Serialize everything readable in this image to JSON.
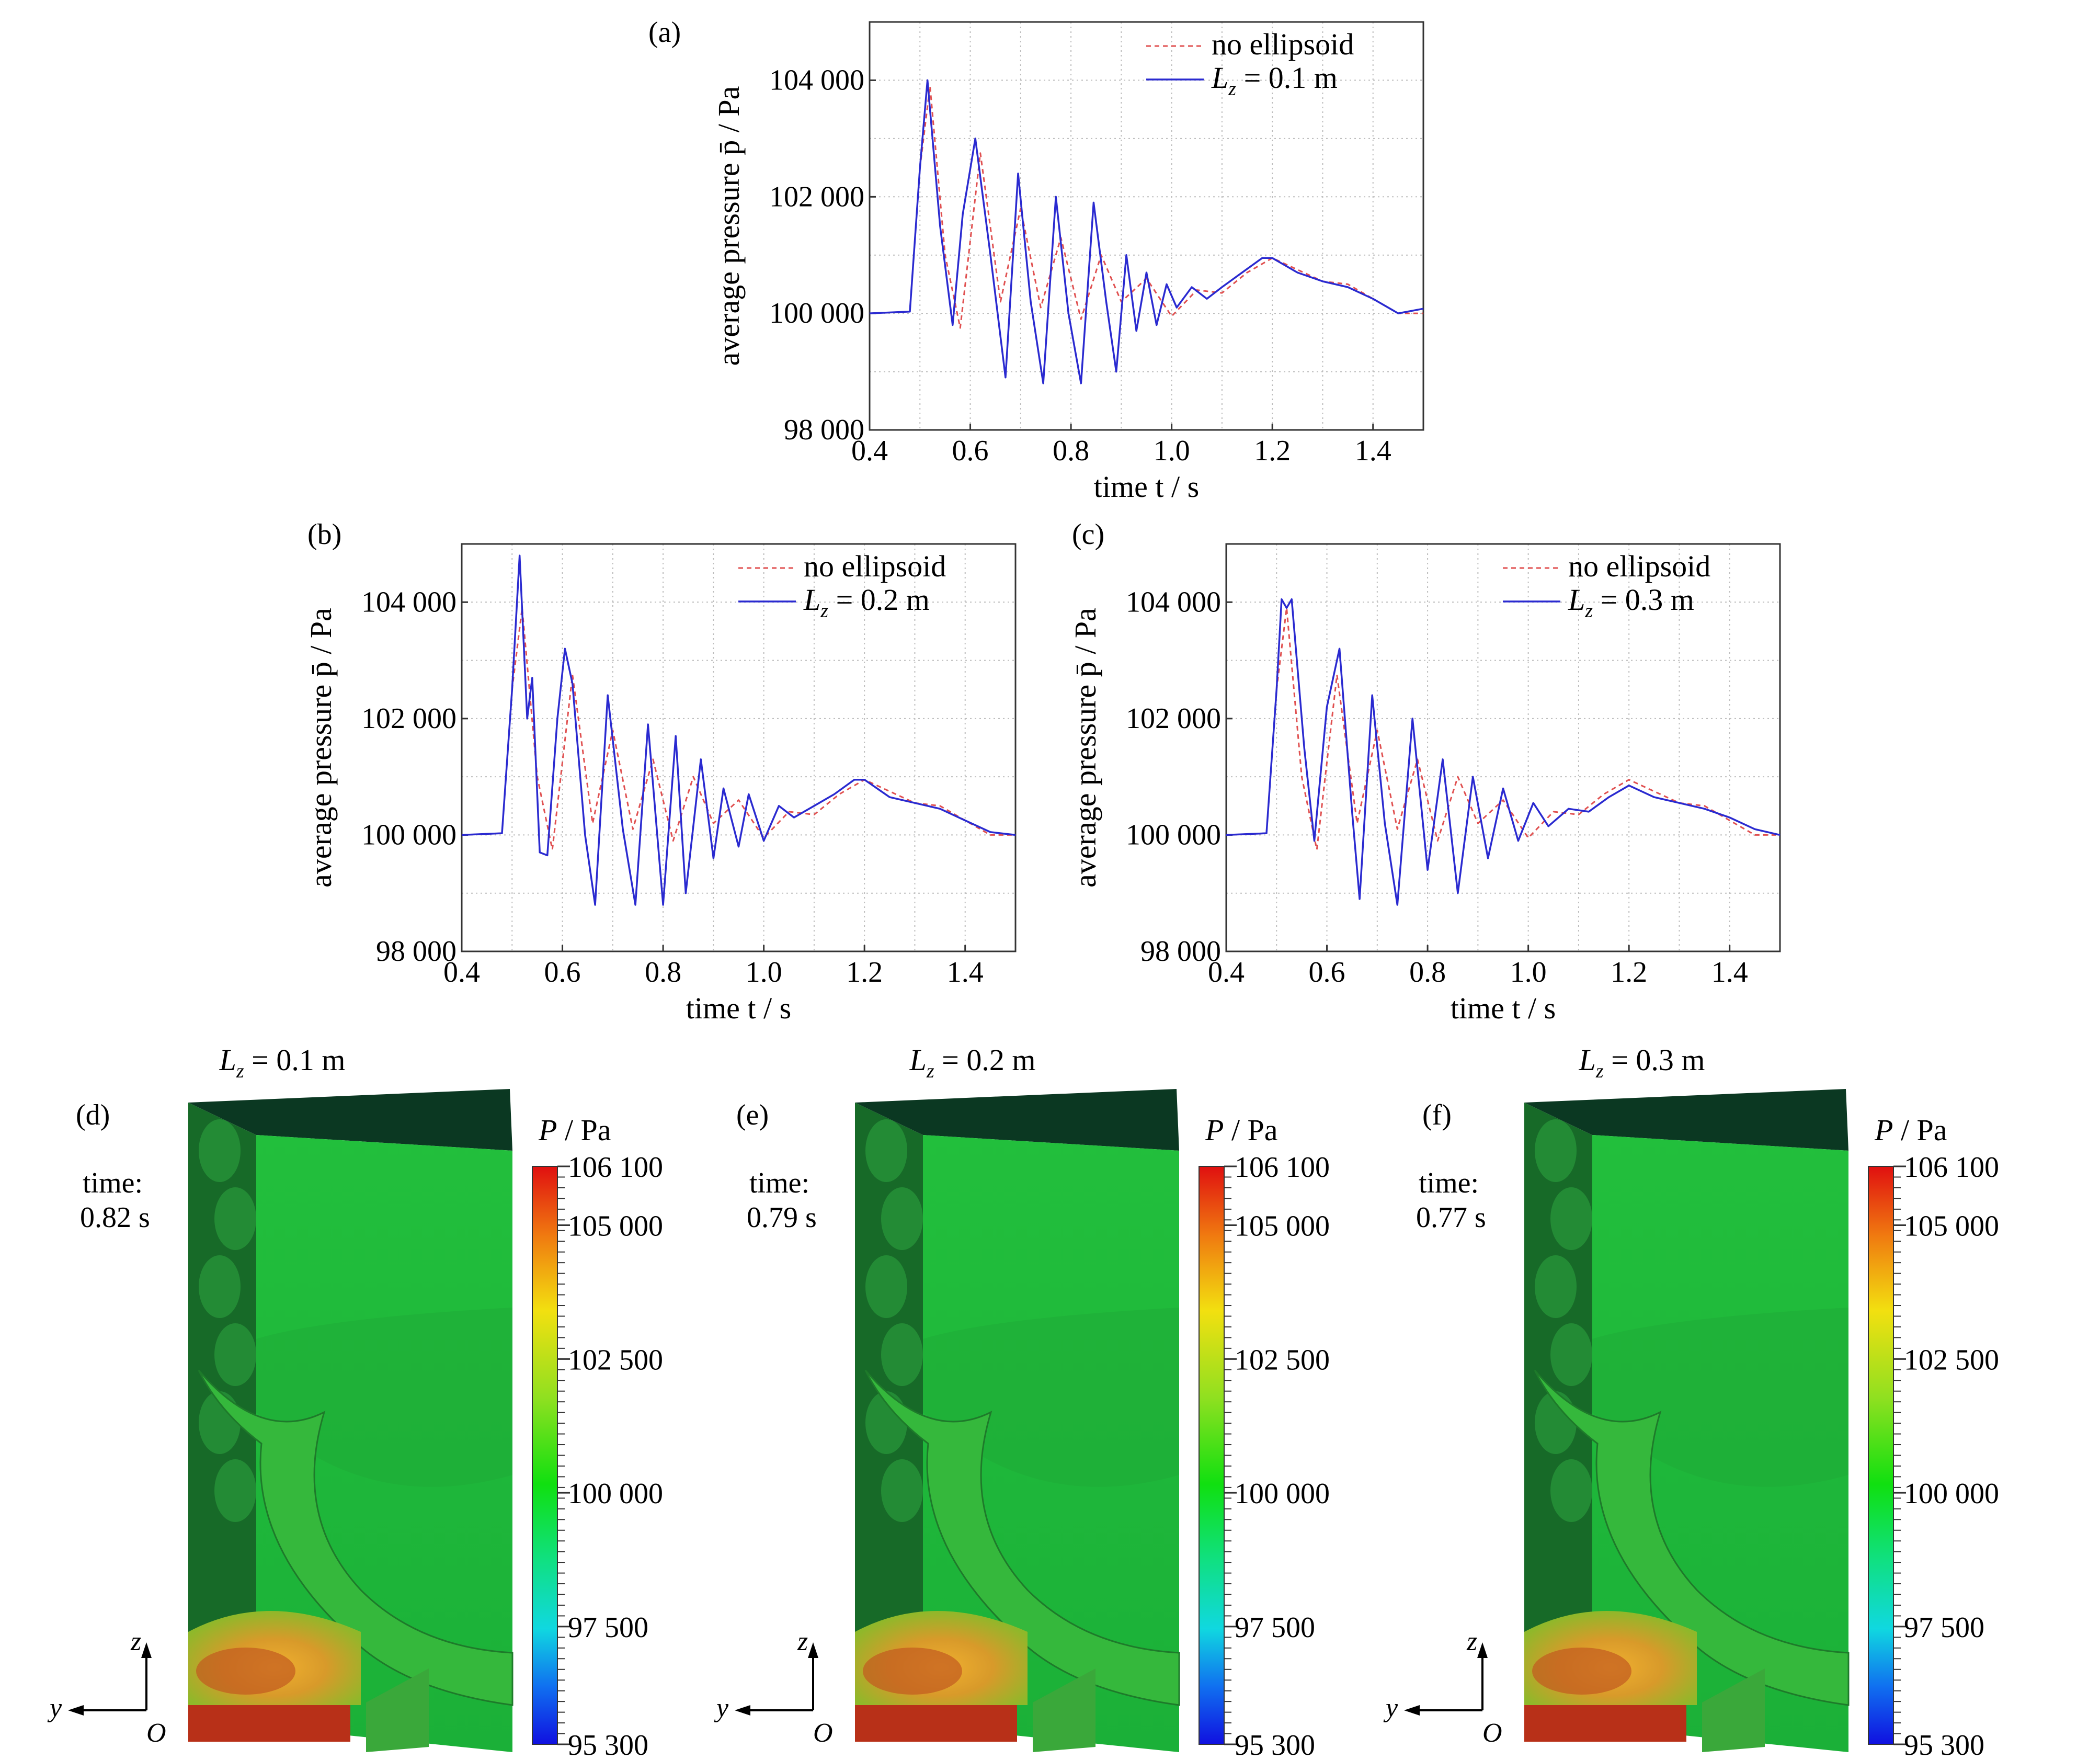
{
  "chart_data": [
    {
      "type": "line",
      "panel_label": "(a)",
      "xlabel": "time t / s",
      "ylabel": "average pressure p̄ / Pa",
      "xlim": [
        0.4,
        1.5
      ],
      "ylim": [
        98000,
        105000
      ],
      "x_ticks": [
        "0.4",
        "0.6",
        "0.8",
        "1.0",
        "1.2",
        "1.4"
      ],
      "y_ticks": [
        "98 000",
        "100 000",
        "102 000",
        "104 000"
      ],
      "grid": true,
      "legend_position": "top-right",
      "series": [
        {
          "name": "no ellipsoid",
          "style": "dashed",
          "color": "#e05050",
          "x": [
            0.4,
            0.48,
            0.5,
            0.52,
            0.55,
            0.58,
            0.62,
            0.66,
            0.7,
            0.74,
            0.78,
            0.82,
            0.86,
            0.9,
            0.95,
            1.0,
            1.05,
            1.1,
            1.15,
            1.2,
            1.25,
            1.3,
            1.35,
            1.4,
            1.45,
            1.5
          ],
          "y": [
            100000,
            100030,
            102500,
            103900,
            101000,
            99750,
            102750,
            100200,
            101800,
            100100,
            101300,
            99900,
            101000,
            100200,
            100600,
            99950,
            100400,
            100350,
            100700,
            100950,
            100750,
            100550,
            100500,
            100250,
            100000,
            100000
          ]
        },
        {
          "name": "L z = 0.1 m",
          "style": "solid",
          "color": "#2a2ad0",
          "x": [
            0.4,
            0.48,
            0.5,
            0.515,
            0.54,
            0.565,
            0.585,
            0.61,
            0.64,
            0.67,
            0.695,
            0.72,
            0.745,
            0.77,
            0.795,
            0.82,
            0.845,
            0.87,
            0.89,
            0.91,
            0.93,
            0.95,
            0.97,
            0.99,
            1.01,
            1.04,
            1.07,
            1.1,
            1.14,
            1.18,
            1.2,
            1.25,
            1.3,
            1.35,
            1.4,
            1.45,
            1.5
          ],
          "y": [
            100000,
            100030,
            102500,
            104000,
            101500,
            99800,
            101700,
            103000,
            101000,
            98900,
            102400,
            100200,
            98800,
            102000,
            100000,
            98800,
            101900,
            100200,
            99000,
            101000,
            99700,
            100700,
            99800,
            100500,
            100100,
            100450,
            100250,
            100450,
            100700,
            100950,
            100950,
            100700,
            100550,
            100450,
            100250,
            100000,
            100080
          ]
        }
      ]
    },
    {
      "type": "line",
      "panel_label": "(b)",
      "xlabel": "time t / s",
      "ylabel": "average pressure p̄ / Pa",
      "xlim": [
        0.4,
        1.5
      ],
      "ylim": [
        98000,
        105000
      ],
      "x_ticks": [
        "0.4",
        "0.6",
        "0.8",
        "1.0",
        "1.2",
        "1.4"
      ],
      "y_ticks": [
        "98 000",
        "100 000",
        "102 000",
        "104 000"
      ],
      "grid": true,
      "legend_position": "top-right",
      "series": [
        {
          "name": "no ellipsoid",
          "style": "dashed",
          "color": "#e05050",
          "x": [
            0.4,
            0.48,
            0.5,
            0.52,
            0.55,
            0.58,
            0.62,
            0.66,
            0.7,
            0.74,
            0.78,
            0.82,
            0.86,
            0.9,
            0.95,
            1.0,
            1.05,
            1.1,
            1.15,
            1.2,
            1.25,
            1.3,
            1.35,
            1.4,
            1.45,
            1.5
          ],
          "y": [
            100000,
            100030,
            102500,
            103900,
            101000,
            99750,
            102750,
            100200,
            101800,
            100100,
            101300,
            99900,
            101000,
            100200,
            100600,
            99950,
            100400,
            100350,
            100700,
            100950,
            100750,
            100550,
            100500,
            100250,
            100000,
            100000
          ]
        },
        {
          "name": "L z = 0.2 m",
          "style": "solid",
          "color": "#2a2ad0",
          "x": [
            0.4,
            0.48,
            0.5,
            0.515,
            0.53,
            0.54,
            0.555,
            0.57,
            0.59,
            0.605,
            0.62,
            0.645,
            0.665,
            0.69,
            0.72,
            0.745,
            0.77,
            0.8,
            0.825,
            0.845,
            0.875,
            0.9,
            0.92,
            0.95,
            0.97,
            1.0,
            1.03,
            1.06,
            1.1,
            1.14,
            1.18,
            1.2,
            1.25,
            1.3,
            1.35,
            1.4,
            1.45,
            1.5
          ],
          "y": [
            100000,
            100030,
            102500,
            104800,
            102000,
            102700,
            99700,
            99650,
            102000,
            103200,
            102600,
            100000,
            98800,
            102400,
            100100,
            98800,
            101900,
            98800,
            101700,
            99000,
            101300,
            99600,
            100800,
            99800,
            100700,
            99900,
            100500,
            100300,
            100500,
            100700,
            100950,
            100950,
            100650,
            100550,
            100450,
            100250,
            100050,
            100000
          ]
        }
      ]
    },
    {
      "type": "line",
      "panel_label": "(c)",
      "xlabel": "time t / s",
      "ylabel": "average pressure p̄ / Pa",
      "xlim": [
        0.4,
        1.5
      ],
      "ylim": [
        98000,
        105000
      ],
      "x_ticks": [
        "0.4",
        "0.6",
        "0.8",
        "1.0",
        "1.2",
        "1.4"
      ],
      "y_ticks": [
        "98 000",
        "100 000",
        "102 000",
        "104 000"
      ],
      "grid": true,
      "legend_position": "top-right",
      "series": [
        {
          "name": "no ellipsoid",
          "style": "dashed",
          "color": "#e05050",
          "x": [
            0.4,
            0.48,
            0.5,
            0.52,
            0.55,
            0.58,
            0.62,
            0.66,
            0.7,
            0.74,
            0.78,
            0.82,
            0.86,
            0.9,
            0.95,
            1.0,
            1.05,
            1.1,
            1.15,
            1.2,
            1.25,
            1.3,
            1.35,
            1.4,
            1.45,
            1.5
          ],
          "y": [
            100000,
            100030,
            102500,
            103900,
            101000,
            99750,
            102750,
            100200,
            101800,
            100100,
            101300,
            99900,
            101000,
            100200,
            100600,
            99950,
            100400,
            100350,
            100700,
            100950,
            100750,
            100550,
            100500,
            100250,
            100000,
            100000
          ]
        },
        {
          "name": "L z = 0.3 m",
          "style": "solid",
          "color": "#2a2ad0",
          "x": [
            0.4,
            0.48,
            0.5,
            0.51,
            0.52,
            0.53,
            0.555,
            0.575,
            0.6,
            0.625,
            0.65,
            0.665,
            0.69,
            0.715,
            0.74,
            0.77,
            0.8,
            0.83,
            0.86,
            0.89,
            0.92,
            0.95,
            0.98,
            1.01,
            1.04,
            1.08,
            1.12,
            1.16,
            1.2,
            1.25,
            1.3,
            1.35,
            1.4,
            1.45,
            1.5
          ],
          "y": [
            100000,
            100030,
            102500,
            104050,
            103900,
            104050,
            101500,
            99900,
            102200,
            103200,
            100400,
            98900,
            102400,
            100200,
            98800,
            102000,
            99400,
            101300,
            99000,
            101000,
            99600,
            100800,
            99900,
            100550,
            100150,
            100450,
            100400,
            100650,
            100850,
            100650,
            100550,
            100450,
            100300,
            100100,
            100000
          ]
        }
      ]
    }
  ],
  "legend_entries": {
    "a": [
      "no ellipsoid",
      "L",
      "z",
      " = 0.1 m"
    ],
    "b": [
      "no ellipsoid",
      "L",
      "z",
      " = 0.2 m"
    ],
    "c": [
      "no ellipsoid",
      "L",
      "z",
      " = 0.3 m"
    ]
  },
  "contour_panels": [
    {
      "label": "(d)",
      "title_L": "L",
      "title_sub": "z",
      "title_rest": " = 0.1 m",
      "time_label": "time:",
      "time_value": "0.82 s"
    },
    {
      "label": "(e)",
      "title_L": "L",
      "title_sub": "z",
      "title_rest": " = 0.2 m",
      "time_label": "time:",
      "time_value": "0.79 s"
    },
    {
      "label": "(f)",
      "title_L": "L",
      "title_sub": "z",
      "title_rest": " = 0.3 m",
      "time_label": "time:",
      "time_value": "0.77 s"
    }
  ],
  "colorbar": {
    "title_P": "P",
    "title_unit": " / Pa",
    "labels": [
      "106 100",
      "105 000",
      "102 500",
      "100 000",
      "97 500",
      "95 300"
    ],
    "values": [
      106100,
      105000,
      102500,
      100000,
      97500,
      95300
    ]
  },
  "axes_triad": {
    "z": "z",
    "y": "y",
    "o": "O"
  },
  "colors": {
    "dashed_series": "#e05050",
    "solid_series": "#2a2ad0",
    "top_face": "#0b3822",
    "front_face": "#1fb83a",
    "side_face": "#176a28",
    "warm_region": "#d89a2a"
  }
}
